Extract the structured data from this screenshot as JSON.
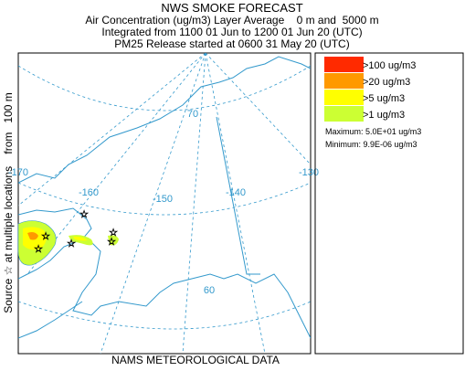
{
  "header": {
    "title": "NWS SMOKE FORECAST",
    "line1": "Air Concentration (ug/m3) Layer Average    0 m and  5000 m",
    "line2": "Integrated from 1100 01 Jun to 1200 01 Jun 20 (UTC)",
    "line3": "PM25 Release started at 0600 31 May 20 (UTC)"
  },
  "side_label": "Source ☆ at multiple locations    from   100 m",
  "footer": "NAMS METEOROLOGICAL DATA",
  "legend": {
    "items": [
      {
        "label": ">100 ug/m3",
        "color": "#ff2a00"
      },
      {
        "label": ">20 ug/m3",
        "color": "#ff9900"
      },
      {
        "label": ">5 ug/m3",
        "color": "#ffff00"
      },
      {
        "label": ">1 ug/m3",
        "color": "#ccff33"
      }
    ],
    "maximum": "Maximum: 5.0E+01 ug/m3",
    "minimum": "Minimum: 9.9E-06 ug/m3"
  },
  "map": {
    "longitudes": [
      "-170",
      "-160",
      "-150",
      "-140",
      "-130"
    ],
    "latitudes": [
      "70",
      "60"
    ]
  }
}
